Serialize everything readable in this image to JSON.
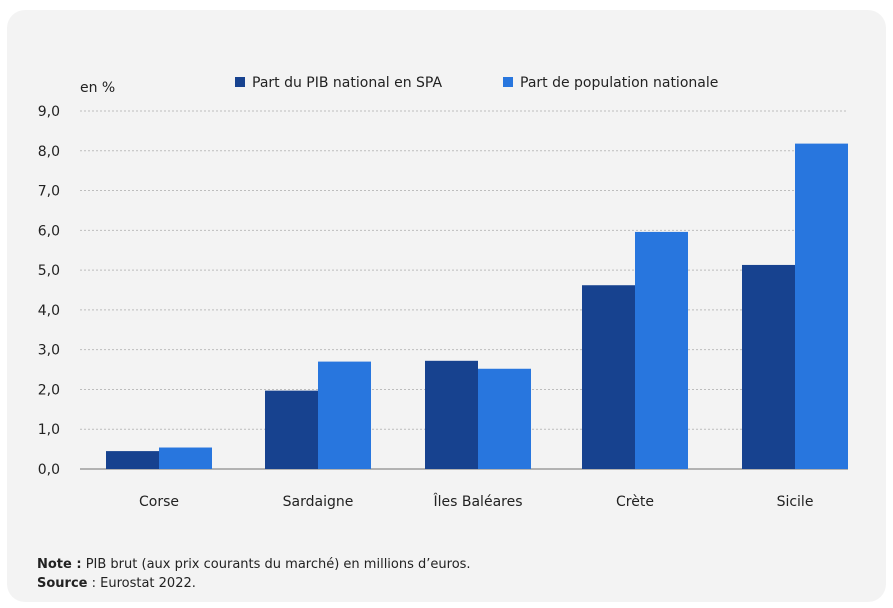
{
  "chart_data": {
    "type": "bar",
    "ylabel": "en %",
    "ylim": [
      0,
      9
    ],
    "yticks": [
      "0,0",
      "1,0",
      "2,0",
      "3,0",
      "4,0",
      "5,0",
      "6,0",
      "7,0",
      "8,0",
      "9,0"
    ],
    "grid": true,
    "legend_position": "top",
    "categories": [
      "Corse",
      "Sardaigne",
      "Îles Baléares",
      "Crète",
      "Sicile"
    ],
    "series": [
      {
        "name": "Part du PIB national en SPA",
        "color": "#17428f",
        "values": [
          0.45,
          1.97,
          2.72,
          4.62,
          5.13
        ]
      },
      {
        "name": "Part de population nationale",
        "color": "#2876de",
        "values": [
          0.54,
          2.7,
          2.52,
          5.96,
          8.18
        ]
      }
    ]
  },
  "footer": {
    "note_label": "Note :",
    "note_text": " PIB brut (aux prix courants du marché) en millions d’euros.",
    "source_label": "Source",
    "source_text": " : Eurostat  2022."
  }
}
